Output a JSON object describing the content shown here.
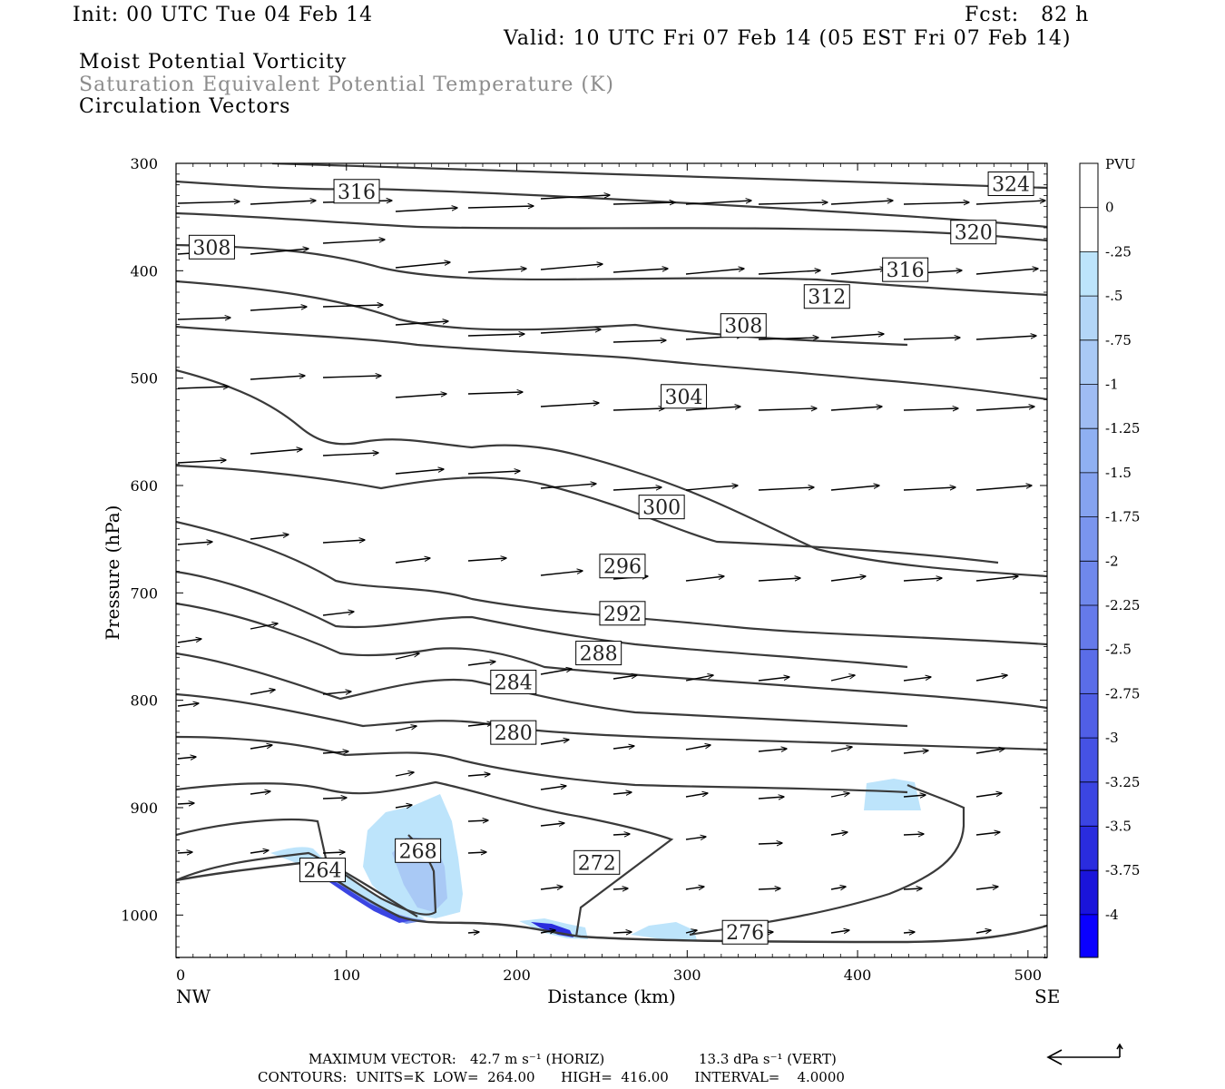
{
  "header": {
    "init": "Init: 00 UTC Tue 04 Feb 14",
    "fcst": "Fcst:   82 h",
    "valid": "Valid: 10 UTC Fri 07 Feb 14 (05 EST Fri 07 Feb 14)",
    "title1": "Moist Potential Vorticity",
    "title2": "Saturation Equivalent Potential Temperature (K)",
    "title3": "Circulation Vectors"
  },
  "footer": {
    "maxvec_label": "MAXIMUM VECTOR:",
    "horiz": "42.7 m s⁻¹ (HORIZ)",
    "vert": "13.3 dPa s⁻¹ (VERT)",
    "contours": "CONTOURS:  UNITS=K  LOW=  264.00      HIGH=  416.00      INTERVAL=    4.0000"
  },
  "colors": {
    "contour": "#3a3a3a",
    "pv_fill": [
      "#bde4fb",
      "#a9c9f5",
      "#8fb0f2",
      "#7a95ee",
      "#657aea",
      "#505fe6",
      "#3b45e2",
      "#2a2cde",
      "#1a14da",
      "#0a00ff"
    ]
  },
  "chart_data": {
    "type": "cross-section",
    "xlabel": "Distance (km)",
    "ylabel": "Pressure (hPa)",
    "xlim": [
      0,
      512
    ],
    "ylim": [
      300,
      1040
    ],
    "y_reversed": true,
    "x_ticks": [
      0,
      100,
      200,
      300,
      400,
      500
    ],
    "y_ticks": [
      300,
      400,
      500,
      600,
      700,
      800,
      900,
      1000
    ],
    "x_end_labels": {
      "left": "NW",
      "right": "SE"
    },
    "colorbar": {
      "title": "PVU",
      "labels": [
        "0",
        "-.25",
        "-.5",
        "-.75",
        "-1",
        "-1.25",
        "-1.5",
        "-1.75",
        "-2",
        "-2.25",
        "-2.5",
        "-2.75",
        "-3",
        "-3.25",
        "-3.5",
        "-3.75",
        "-4"
      ]
    },
    "contour_labels": [
      {
        "text": "324",
        "x": 490,
        "p": 319
      },
      {
        "text": "320",
        "x": 468,
        "p": 364
      },
      {
        "text": "316",
        "x": 106,
        "p": 326
      },
      {
        "text": "316",
        "x": 428,
        "p": 399
      },
      {
        "text": "312",
        "x": 382,
        "p": 424
      },
      {
        "text": "308",
        "x": 21,
        "p": 378
      },
      {
        "text": "308",
        "x": 333,
        "p": 451
      },
      {
        "text": "304",
        "x": 298,
        "p": 517
      },
      {
        "text": "300",
        "x": 285,
        "p": 620
      },
      {
        "text": "296",
        "x": 262,
        "p": 675
      },
      {
        "text": "292",
        "x": 262,
        "p": 719
      },
      {
        "text": "288",
        "x": 248,
        "p": 756
      },
      {
        "text": "284",
        "x": 198,
        "p": 783
      },
      {
        "text": "280",
        "x": 198,
        "p": 830
      },
      {
        "text": "276",
        "x": 334,
        "p": 1016
      },
      {
        "text": "272",
        "x": 247,
        "p": 951
      },
      {
        "text": "268",
        "x": 142,
        "p": 940
      },
      {
        "text": "264",
        "x": 86,
        "p": 958
      }
    ]
  }
}
